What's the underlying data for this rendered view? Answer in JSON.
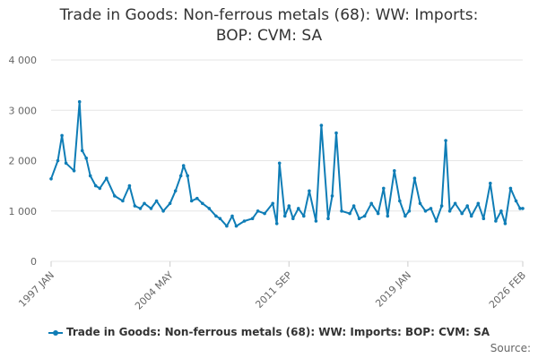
{
  "title_line1": "Trade in Goods: Non-ferrous metals (68): WW: Imports:",
  "title_line2": "BOP: CVM: SA",
  "source": "Source:",
  "colors": {
    "series": "#0f7db6",
    "grid": "#e6e6e6",
    "axis_text": "#666666"
  },
  "chart_data": {
    "type": "line",
    "title": "Trade in Goods: Non-ferrous metals (68): WW: Imports: BOP: CVM: SA",
    "xlabel": "",
    "ylabel": "",
    "ylim": [
      0,
      4000
    ],
    "yticks": [
      0,
      1000,
      2000,
      3000,
      4000
    ],
    "ytick_labels": [
      "0",
      "1 000",
      "2 000",
      "3 000",
      "4 000"
    ],
    "xlim": [
      "1997-01",
      "2026-02"
    ],
    "xticks": [
      "1997 JAN",
      "2004 MAY",
      "2011 SEP",
      "2019 JAN",
      "2026 FEB"
    ],
    "grid": true,
    "legend": "bottom",
    "series": [
      {
        "name": "Trade in Goods: Non-ferrous metals (68): WW: Imports: BOP: CVM: SA",
        "x": [
          "1997-01",
          "1997-06",
          "1997-09",
          "1997-12",
          "1998-06",
          "1998-10",
          "1998-12",
          "1999-03",
          "1999-06",
          "1999-10",
          "2000-01",
          "2000-06",
          "2000-12",
          "2001-06",
          "2001-11",
          "2002-03",
          "2002-07",
          "2002-10",
          "2003-03",
          "2003-07",
          "2003-12",
          "2004-05",
          "2004-09",
          "2005-01",
          "2005-03",
          "2005-06",
          "2005-09",
          "2006-01",
          "2006-05",
          "2006-10",
          "2007-03",
          "2007-06",
          "2007-11",
          "2008-03",
          "2008-06",
          "2008-12",
          "2009-06",
          "2009-10",
          "2010-03",
          "2010-09",
          "2010-12",
          "2011-02",
          "2011-06",
          "2011-09",
          "2011-12",
          "2012-04",
          "2012-08",
          "2012-12",
          "2013-05",
          "2013-09",
          "2014-02",
          "2014-05",
          "2014-08",
          "2014-12",
          "2015-06",
          "2015-09",
          "2016-01",
          "2016-05",
          "2016-10",
          "2017-03",
          "2017-07",
          "2017-10",
          "2018-03",
          "2018-07",
          "2018-11",
          "2019-02",
          "2019-06",
          "2019-10",
          "2020-02",
          "2020-06",
          "2020-10",
          "2021-02",
          "2021-05",
          "2021-08",
          "2021-12",
          "2022-05",
          "2022-09",
          "2022-12",
          "2023-05",
          "2023-09",
          "2024-02",
          "2024-06",
          "2024-10",
          "2025-01",
          "2025-05",
          "2025-09",
          "2025-12",
          "2026-02"
        ],
        "values": [
          1640,
          2000,
          2500,
          1950,
          1800,
          3170,
          2200,
          2050,
          1700,
          1500,
          1450,
          1650,
          1300,
          1200,
          1500,
          1100,
          1050,
          1150,
          1050,
          1200,
          1000,
          1150,
          1400,
          1700,
          1900,
          1700,
          1200,
          1250,
          1150,
          1050,
          900,
          850,
          700,
          900,
          700,
          800,
          850,
          1000,
          950,
          1150,
          750,
          1950,
          900,
          1100,
          850,
          1050,
          900,
          1400,
          800,
          2700,
          850,
          1300,
          2550,
          1000,
          950,
          1100,
          850,
          900,
          1150,
          950,
          1450,
          900,
          1800,
          1200,
          900,
          1000,
          1650,
          1150,
          1000,
          1050,
          800,
          1100,
          2400,
          1000,
          1150,
          950,
          1100,
          900,
          1150,
          850,
          1550,
          800,
          1000,
          750,
          1450,
          1200,
          1050,
          1050
        ]
      }
    ]
  }
}
